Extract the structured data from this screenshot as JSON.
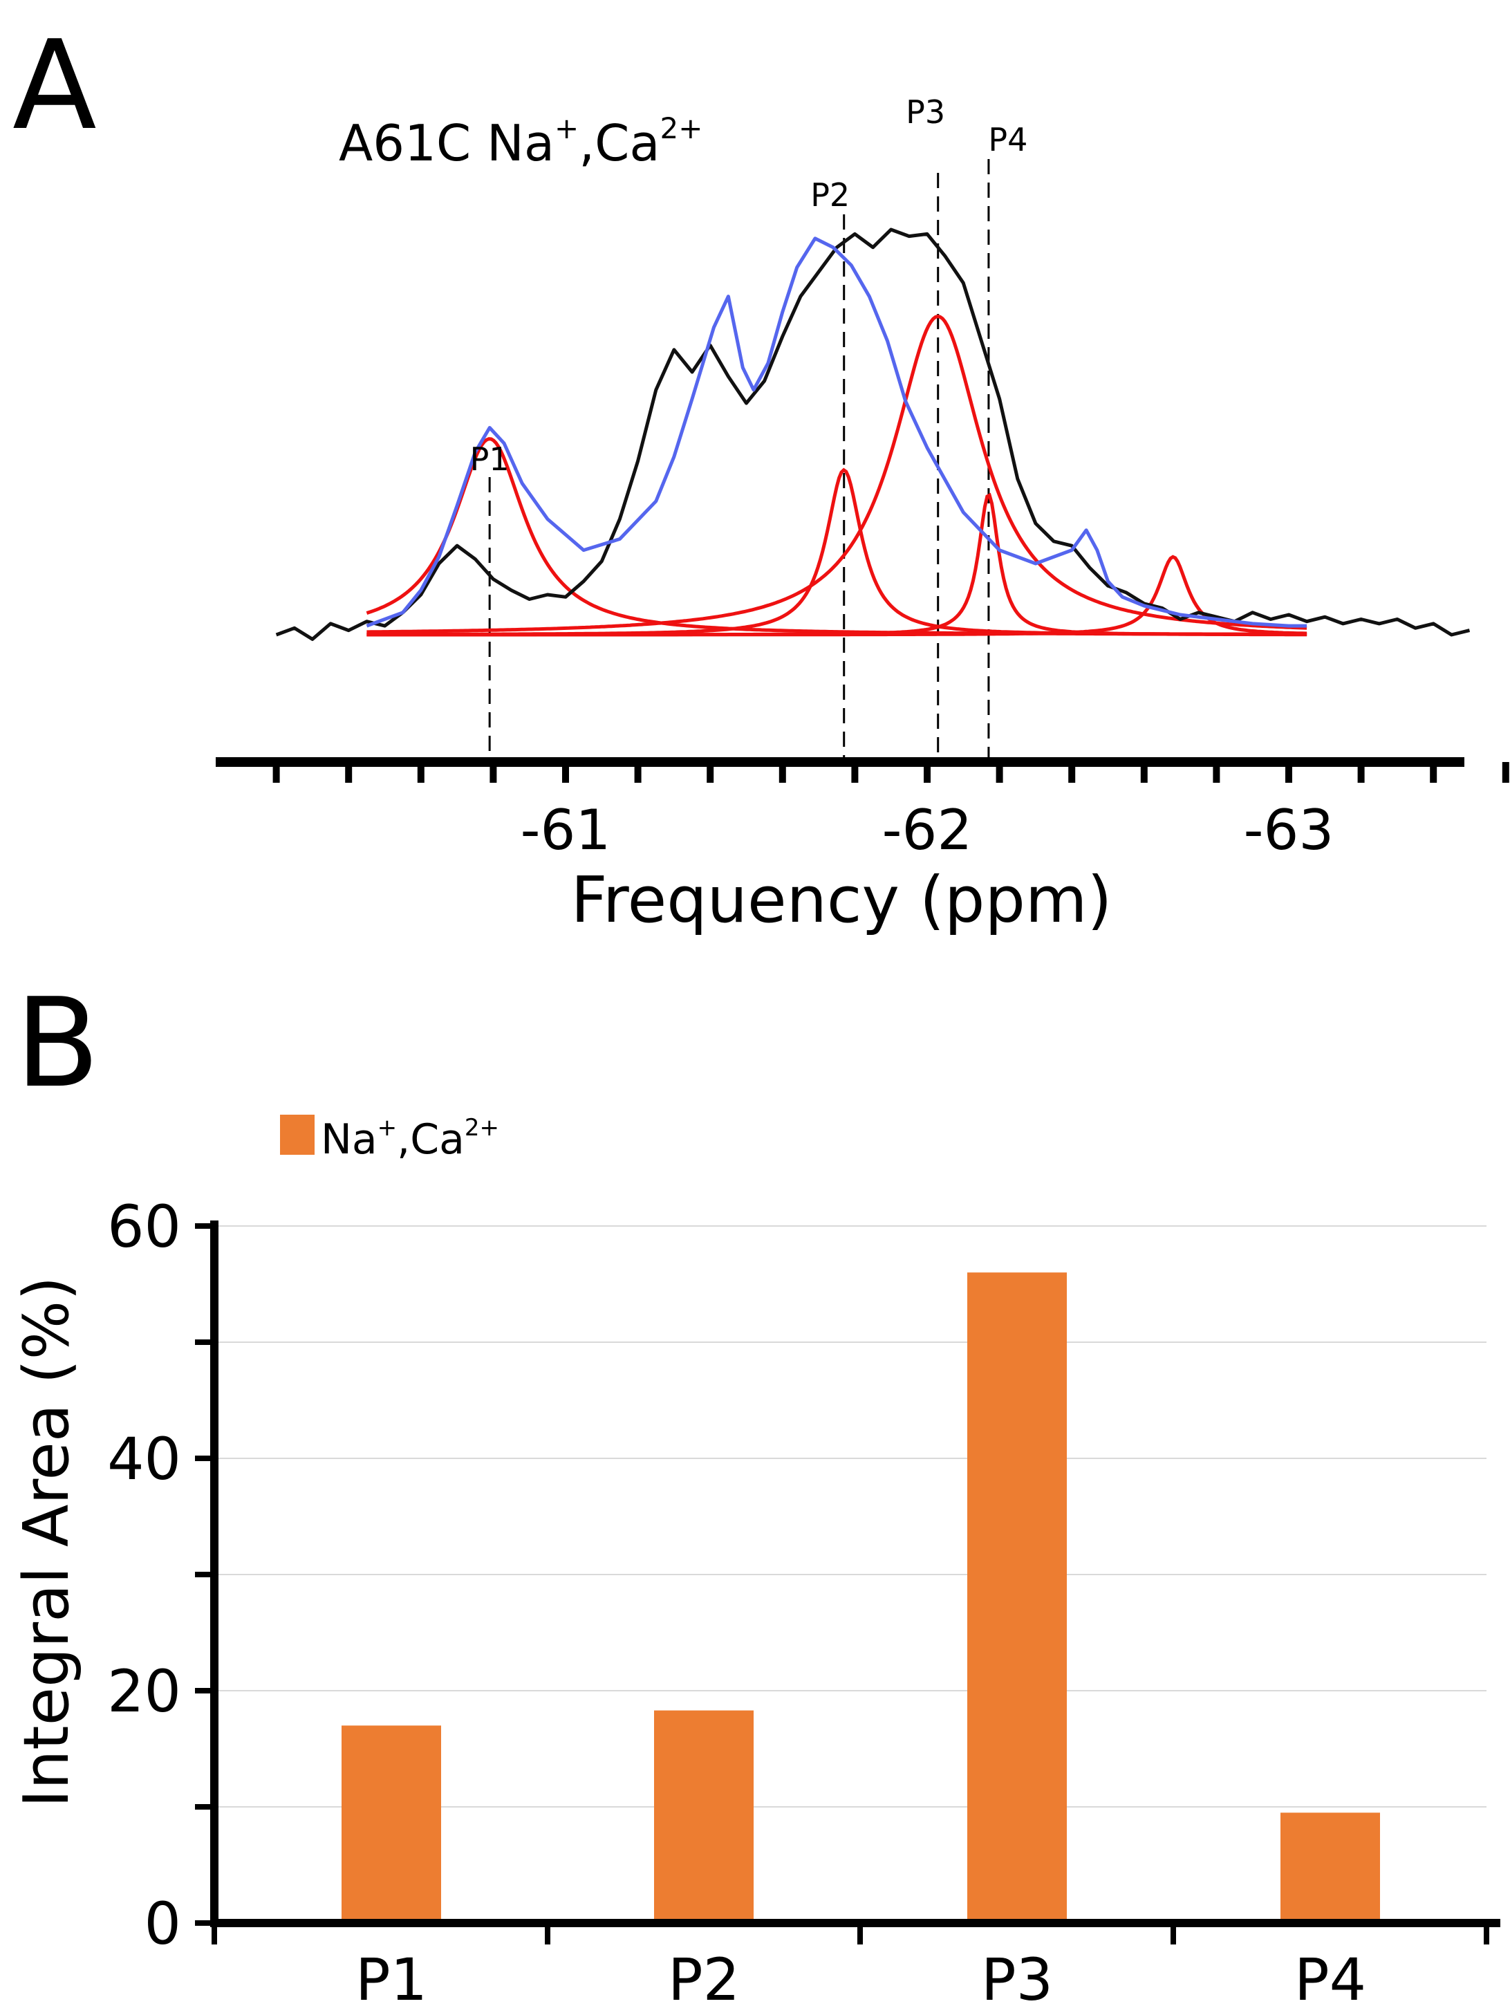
{
  "panel_a": {
    "letter": "A",
    "sample_label": "A61C Na",
    "sample_sup1": "+",
    "sample_mid": ",Ca",
    "sample_sup2": "2+",
    "xlabel": "Frequency (ppm)",
    "peak_labels": [
      "P1",
      "P2",
      "P3",
      "P4"
    ]
  },
  "panel_b": {
    "letter": "B",
    "legend_label": "Na",
    "legend_sup1": "+",
    "legend_mid": ",Ca",
    "legend_sup2": "2+",
    "ylabel": "Integral Area (%)"
  },
  "colors": {
    "experimental": "#111111",
    "fit_sum": "#5566ee",
    "fit_components": "#ee1111",
    "bar": "#ed7d31",
    "grid": "#d9d9d9"
  },
  "chart_data": [
    {
      "type": "line",
      "xlabel": "Frequency (ppm)",
      "x_axis_reversed": true,
      "xlim": [
        -60.2,
        -63.55
      ],
      "x_ticks": [
        -61,
        -62,
        -63
      ],
      "grid": false,
      "series": [
        {
          "style": "experimental",
          "x": [
            -60.2,
            -60.25,
            -60.3,
            -60.35,
            -60.4,
            -60.45,
            -60.5,
            -60.55,
            -60.6,
            -60.65,
            -60.7,
            -60.75,
            -60.8,
            -60.85,
            -60.9,
            -60.95,
            -61.0,
            -61.05,
            -61.1,
            -61.15,
            -61.2,
            -61.25,
            -61.3,
            -61.35,
            -61.4,
            -61.45,
            -61.5,
            -61.55,
            -61.6,
            -61.65,
            -61.7,
            -61.75,
            -61.8,
            -61.85,
            -61.9,
            -61.95,
            -62.0,
            -62.05,
            -62.1,
            -62.15,
            -62.2,
            -62.25,
            -62.3,
            -62.35,
            -62.4,
            -62.45,
            -62.5,
            -62.55,
            -62.6,
            -62.65,
            -62.7,
            -62.75,
            -62.8,
            -62.85,
            -62.9,
            -62.95,
            -63.0,
            -63.05,
            -63.1,
            -63.15,
            -63.2,
            -63.25,
            -63.3,
            -63.35,
            -63.4,
            -63.45,
            -63.5
          ],
          "y": [
            0.0,
            0.03,
            -0.02,
            0.05,
            0.02,
            0.06,
            0.04,
            0.1,
            0.18,
            0.32,
            0.4,
            0.34,
            0.25,
            0.2,
            0.16,
            0.18,
            0.17,
            0.24,
            0.33,
            0.52,
            0.78,
            1.1,
            1.28,
            1.18,
            1.3,
            1.16,
            1.04,
            1.14,
            1.34,
            1.52,
            1.63,
            1.74,
            1.8,
            1.74,
            1.82,
            1.79,
            1.8,
            1.7,
            1.58,
            1.32,
            1.06,
            0.7,
            0.5,
            0.42,
            0.4,
            0.3,
            0.22,
            0.19,
            0.14,
            0.12,
            0.07,
            0.1,
            0.08,
            0.06,
            0.1,
            0.07,
            0.09,
            0.06,
            0.08,
            0.05,
            0.07,
            0.05,
            0.07,
            0.03,
            0.05,
            0.0,
            0.02
          ]
        },
        {
          "style": "fit_sum",
          "x": [
            -60.45,
            -60.55,
            -60.6,
            -60.65,
            -60.7,
            -60.75,
            -60.79,
            -60.83,
            -60.88,
            -60.95,
            -61.05,
            -61.15,
            -61.25,
            -61.3,
            -61.35,
            -61.41,
            -61.45,
            -61.49,
            -61.52,
            -61.56,
            -61.6,
            -61.64,
            -61.69,
            -61.74,
            -61.79,
            -61.84,
            -61.89,
            -61.94,
            -62.0,
            -62.1,
            -62.2,
            -62.3,
            -62.4,
            -62.44,
            -62.47,
            -62.5,
            -62.54,
            -62.6,
            -62.7,
            -62.8,
            -62.9,
            -63.0,
            -63.05
          ],
          "y": [
            0.04,
            0.1,
            0.2,
            0.35,
            0.58,
            0.82,
            0.93,
            0.86,
            0.68,
            0.52,
            0.38,
            0.43,
            0.6,
            0.8,
            1.06,
            1.38,
            1.52,
            1.2,
            1.1,
            1.22,
            1.45,
            1.65,
            1.78,
            1.74,
            1.66,
            1.52,
            1.32,
            1.05,
            0.84,
            0.55,
            0.38,
            0.32,
            0.38,
            0.47,
            0.38,
            0.24,
            0.17,
            0.13,
            0.09,
            0.07,
            0.05,
            0.04,
            0.04
          ]
        },
        {
          "style": "fit_components",
          "peaks": [
            {
              "name": "P1",
              "center": -60.79,
              "height": 0.88,
              "width": 0.12
            },
            {
              "name": "P2",
              "center": -61.77,
              "height": 0.74,
              "width": 0.06
            },
            {
              "name": "P3",
              "center": -62.03,
              "height": 1.43,
              "width": 0.15
            },
            {
              "name": "P4",
              "center": -62.17,
              "height": 0.63,
              "width": 0.034
            },
            {
              "name": "",
              "center": -62.68,
              "height": 0.35,
              "width": 0.05
            }
          ]
        }
      ]
    },
    {
      "type": "bar",
      "categories": [
        "P1",
        "P2",
        "P3",
        "P4"
      ],
      "series": [
        {
          "name": "Na+,Ca2+",
          "values": [
            17,
            18.3,
            56,
            9.5
          ]
        }
      ],
      "ylabel": "Integral Area (%)",
      "ylim": [
        0,
        60
      ],
      "y_ticks": [
        0,
        20,
        40,
        60
      ],
      "grid": true,
      "legend": "top-left"
    }
  ]
}
